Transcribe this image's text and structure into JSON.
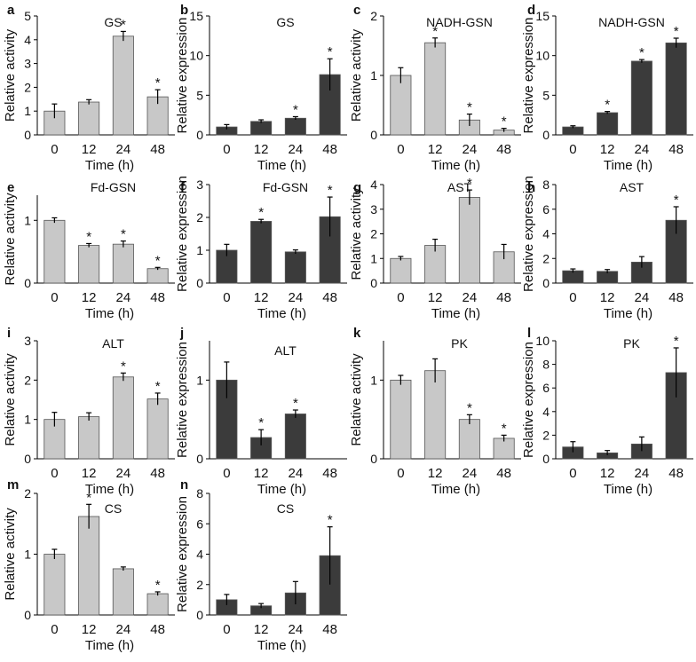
{
  "figure": {
    "x_label": "Time (h)",
    "activity_label": "Relative activity",
    "expression_label": "Relative expression",
    "colors": {
      "activity_bar": "#c8c8c8",
      "expression_bar": "#3b3b3b",
      "axis": "#000000",
      "text": "#111111"
    }
  },
  "chart_data": [
    {
      "panel": "a",
      "type": "bar",
      "title": "GS",
      "ylabel": "Relative activity",
      "xlabel": "Time (h)",
      "categories": [
        "0",
        "12",
        "24",
        "48"
      ],
      "values": [
        1.0,
        1.38,
        4.15,
        1.6
      ],
      "errors": [
        0.3,
        0.1,
        0.2,
        0.3
      ],
      "significant": [
        false,
        false,
        true,
        true
      ],
      "ylim": [
        0,
        5
      ],
      "yticks": [
        "0",
        "1",
        "2",
        "3",
        "4",
        "5"
      ],
      "style": "activity"
    },
    {
      "panel": "b",
      "type": "bar",
      "title": "GS",
      "ylabel": "Relative expression",
      "xlabel": "Time (h)",
      "categories": [
        "0",
        "12",
        "24",
        "48"
      ],
      "values": [
        1.0,
        1.7,
        2.1,
        7.6
      ],
      "errors": [
        0.3,
        0.2,
        0.2,
        2.0
      ],
      "significant": [
        false,
        false,
        true,
        true
      ],
      "ylim": [
        0,
        15
      ],
      "yticks": [
        "0",
        "5",
        "10",
        "15"
      ],
      "style": "expression"
    },
    {
      "panel": "c",
      "type": "bar",
      "title": "NADH-GSN",
      "ylabel": "Relative activity",
      "xlabel": "Time (h)",
      "categories": [
        "0",
        "12",
        "24",
        "48"
      ],
      "values": [
        1.0,
        1.55,
        0.25,
        0.08
      ],
      "errors": [
        0.13,
        0.08,
        0.1,
        0.03
      ],
      "significant": [
        false,
        true,
        true,
        true
      ],
      "ylim": [
        0,
        2
      ],
      "yticks": [
        "0",
        "1",
        "2"
      ],
      "style": "activity"
    },
    {
      "panel": "d",
      "type": "bar",
      "title": "NADH-GSN",
      "ylabel": "Relative expression",
      "xlabel": "Time (h)",
      "categories": [
        "0",
        "12",
        "24",
        "48"
      ],
      "values": [
        1.0,
        2.8,
        9.3,
        11.6
      ],
      "errors": [
        0.15,
        0.15,
        0.2,
        0.6
      ],
      "significant": [
        false,
        true,
        true,
        true
      ],
      "ylim": [
        0,
        15
      ],
      "yticks": [
        "0",
        "5",
        "10",
        "15"
      ],
      "style": "expression"
    },
    {
      "panel": "e",
      "type": "bar",
      "title": "Fd-GSN",
      "ylabel": "Relative activity",
      "xlabel": "Time (h)",
      "categories": [
        "0",
        "12",
        "24",
        "48"
      ],
      "values": [
        1.0,
        0.6,
        0.62,
        0.23
      ],
      "errors": [
        0.04,
        0.03,
        0.05,
        0.02
      ],
      "significant": [
        false,
        true,
        true,
        true
      ],
      "ylim": [
        0,
        1.4
      ],
      "yticks": [
        "0",
        "1"
      ],
      "ytick_values": [
        0,
        1
      ],
      "style": "activity"
    },
    {
      "panel": "f",
      "type": "bar",
      "title": "Fd-GSN",
      "ylabel": "Relative expression",
      "xlabel": "Time (h)",
      "categories": [
        "0",
        "12",
        "24",
        "48"
      ],
      "values": [
        1.0,
        1.88,
        0.95,
        2.02
      ],
      "errors": [
        0.18,
        0.06,
        0.06,
        0.6
      ],
      "significant": [
        false,
        true,
        false,
        true
      ],
      "ylim": [
        0,
        3
      ],
      "yticks": [
        "0",
        "1",
        "2",
        "3"
      ],
      "style": "expression"
    },
    {
      "panel": "g",
      "type": "bar",
      "title": "AST",
      "ylabel": "Relative activity",
      "xlabel": "Time (h)",
      "categories": [
        "0",
        "12",
        "24",
        "48"
      ],
      "values": [
        1.0,
        1.53,
        3.48,
        1.27
      ],
      "errors": [
        0.08,
        0.25,
        0.3,
        0.3
      ],
      "significant": [
        false,
        false,
        true,
        false
      ],
      "ylim": [
        0,
        4
      ],
      "yticks": [
        "0",
        "1",
        "2",
        "3",
        "4"
      ],
      "style": "activity"
    },
    {
      "panel": "h",
      "type": "bar",
      "title": "AST",
      "ylabel": "Relative expression",
      "xlabel": "Time (h)",
      "categories": [
        "0",
        "12",
        "24",
        "48"
      ],
      "values": [
        1.0,
        0.95,
        1.7,
        5.1
      ],
      "errors": [
        0.15,
        0.15,
        0.45,
        1.1
      ],
      "significant": [
        false,
        false,
        false,
        true
      ],
      "ylim": [
        0,
        8
      ],
      "yticks": [
        "0",
        "2",
        "4",
        "6",
        "8"
      ],
      "style": "expression"
    },
    {
      "panel": "i",
      "type": "bar",
      "title": "ALT",
      "ylabel": "Relative activity",
      "xlabel": "Time (h)",
      "categories": [
        "0",
        "12",
        "24",
        "48"
      ],
      "values": [
        1.0,
        1.07,
        2.08,
        1.52
      ],
      "errors": [
        0.18,
        0.1,
        0.1,
        0.15
      ],
      "significant": [
        false,
        false,
        true,
        true
      ],
      "ylim": [
        0,
        3
      ],
      "yticks": [
        "0",
        "1",
        "2",
        "3"
      ],
      "style": "activity"
    },
    {
      "panel": "j",
      "type": "bar",
      "title": "ALT",
      "ylabel": "Relative expression",
      "xlabel": "Time (h)",
      "categories": [
        "0",
        "12",
        "24",
        "48"
      ],
      "values": [
        1.0,
        0.27,
        0.57,
        0
      ],
      "errors": [
        0.23,
        0.1,
        0.05,
        0
      ],
      "significant": [
        false,
        true,
        true,
        false
      ],
      "ylim": [
        0,
        1.5
      ],
      "yticks": [
        "0",
        "1"
      ],
      "ytick_values": [
        0,
        1
      ],
      "style": "expression"
    },
    {
      "panel": "k",
      "type": "bar",
      "title": "PK",
      "ylabel": "Relative activity",
      "xlabel": "Time (h)",
      "categories": [
        "0",
        "12",
        "24",
        "48"
      ],
      "values": [
        1.0,
        1.12,
        0.5,
        0.26
      ],
      "errors": [
        0.06,
        0.15,
        0.06,
        0.04
      ],
      "significant": [
        false,
        false,
        true,
        true
      ],
      "ylim": [
        0,
        1.5
      ],
      "yticks": [
        "0",
        "1"
      ],
      "ytick_values": [
        0,
        1
      ],
      "style": "activity"
    },
    {
      "panel": "l",
      "type": "bar",
      "title": "PK",
      "ylabel": "Relative expression",
      "xlabel": "Time (h)",
      "categories": [
        "0",
        "12",
        "24",
        "48"
      ],
      "values": [
        1.0,
        0.5,
        1.25,
        7.3
      ],
      "errors": [
        0.45,
        0.2,
        0.6,
        2.1
      ],
      "significant": [
        false,
        false,
        false,
        true
      ],
      "ylim": [
        0,
        10
      ],
      "yticks": [
        "0",
        "2",
        "4",
        "6",
        "8",
        "10"
      ],
      "style": "expression"
    },
    {
      "panel": "m",
      "type": "bar",
      "title": "CS",
      "ylabel": "Relative activity",
      "xlabel": "Time (h)",
      "categories": [
        "0",
        "12",
        "24",
        "48"
      ],
      "values": [
        1.0,
        1.62,
        0.76,
        0.35
      ],
      "errors": [
        0.08,
        0.2,
        0.03,
        0.03
      ],
      "significant": [
        false,
        true,
        false,
        true
      ],
      "ylim": [
        0,
        2
      ],
      "yticks": [
        "0",
        "1",
        "2"
      ],
      "style": "activity"
    },
    {
      "panel": "n",
      "type": "bar",
      "title": "CS",
      "ylabel": "Relative expression",
      "xlabel": "Time (h)",
      "categories": [
        "0",
        "12",
        "24",
        "48"
      ],
      "values": [
        1.0,
        0.6,
        1.45,
        3.9
      ],
      "errors": [
        0.35,
        0.15,
        0.75,
        1.9
      ],
      "significant": [
        false,
        false,
        false,
        true
      ],
      "ylim": [
        0,
        8
      ],
      "yticks": [
        "0",
        "2",
        "4",
        "6",
        "8"
      ],
      "style": "expression"
    }
  ]
}
